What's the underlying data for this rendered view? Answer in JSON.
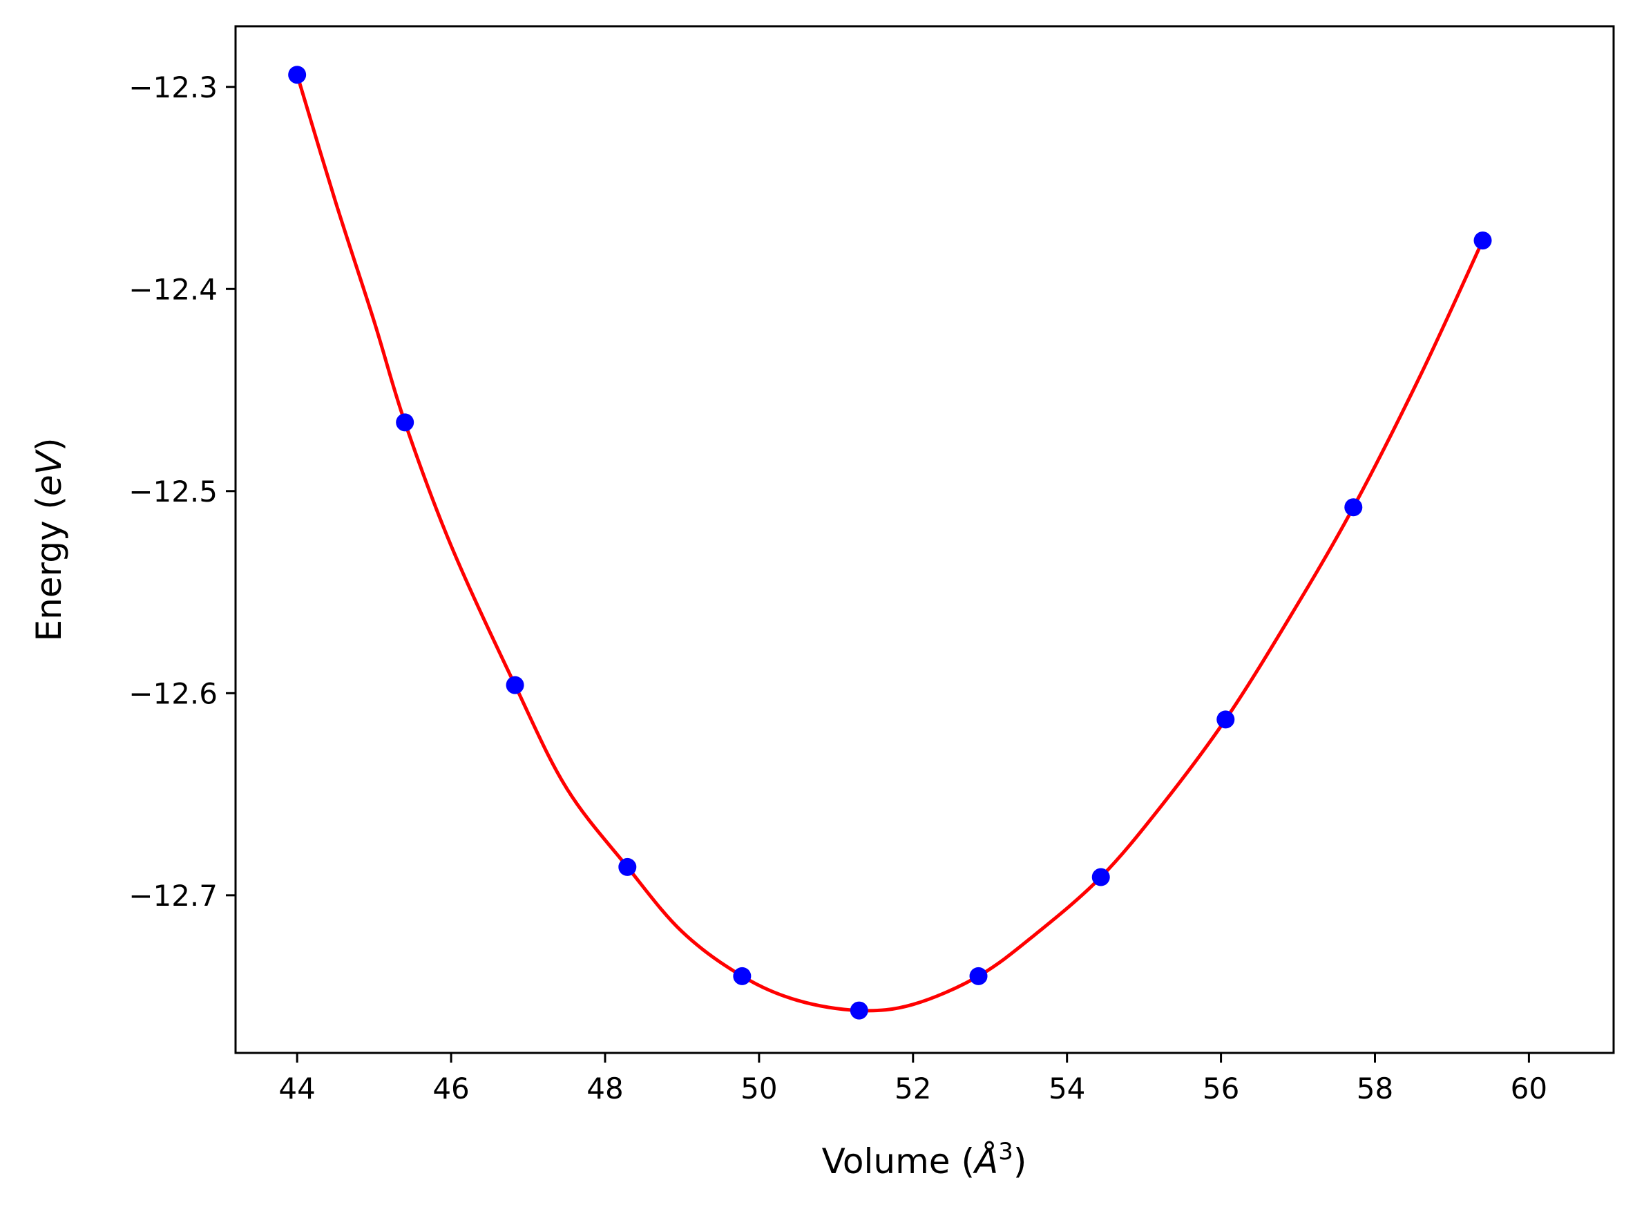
{
  "chart_data": {
    "type": "scatter",
    "title": "",
    "xlabel": "Volume",
    "xlabel_unit_prefix": "(",
    "xlabel_unit_symbol": "Å",
    "xlabel_unit_exponent": "3",
    "xlabel_unit_suffix": ")",
    "ylabel": "Energy",
    "ylabel_unit_prefix": "(",
    "ylabel_unit": "eV",
    "ylabel_unit_suffix": ")",
    "xlim": [
      43.2,
      61.1
    ],
    "ylim": [
      -12.778,
      -12.27
    ],
    "xticks": [
      44,
      46,
      48,
      50,
      52,
      54,
      56,
      58,
      60
    ],
    "xtick_labels": [
      "44",
      "46",
      "48",
      "50",
      "52",
      "54",
      "56",
      "58",
      "60"
    ],
    "yticks": [
      -12.3,
      -12.4,
      -12.5,
      -12.6,
      -12.7
    ],
    "ytick_labels": [
      "−12.3",
      "−12.4",
      "−12.5",
      "−12.6",
      "−12.7"
    ],
    "grid": false,
    "series": [
      {
        "kind": "points",
        "color": "#0000ff",
        "x": [
          44.0,
          45.4,
          46.83,
          48.29,
          49.78,
          51.3,
          52.85,
          54.44,
          56.06,
          57.72,
          59.4
        ],
        "y": [
          -12.294,
          -12.466,
          -12.596,
          -12.686,
          -12.74,
          -12.757,
          -12.74,
          -12.691,
          -12.613,
          -12.508,
          -12.376
        ]
      },
      {
        "kind": "fit-curve",
        "color": "#ff0000",
        "x": [
          44.0,
          44.5,
          45.0,
          45.4,
          46.0,
          46.83,
          47.5,
          48.29,
          49.0,
          49.78,
          50.5,
          51.3,
          52.0,
          52.85,
          53.6,
          54.44,
          55.2,
          56.06,
          56.9,
          57.72,
          58.6,
          59.4
        ],
        "y": [
          -12.294,
          -12.357,
          -12.416,
          -12.466,
          -12.527,
          -12.596,
          -12.647,
          -12.686,
          -12.718,
          -12.74,
          -12.752,
          -12.757,
          -12.754,
          -12.74,
          -12.719,
          -12.691,
          -12.657,
          -12.613,
          -12.562,
          -12.508,
          -12.442,
          -12.376
        ]
      }
    ]
  }
}
